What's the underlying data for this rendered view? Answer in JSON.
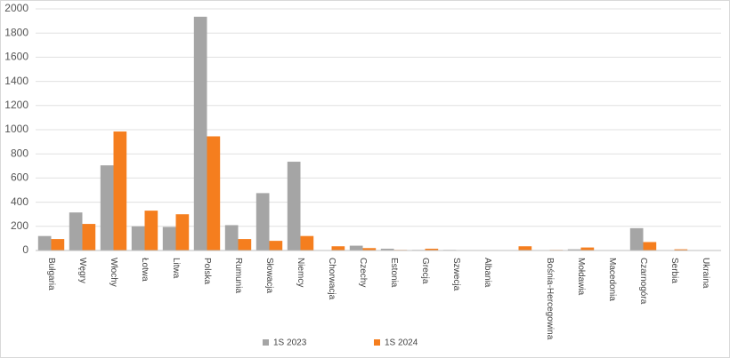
{
  "chart_data": {
    "type": "bar",
    "categories": [
      "Bułgaria",
      "Węgry",
      "Włochy",
      "Łotwa",
      "Litwa",
      "Polska",
      "Rumunia",
      "Słowacja",
      "Niemcy",
      "Chorwacja",
      "Czechy",
      "Estonia",
      "Grecja",
      "Szwecja",
      "Albania",
      null,
      "Bośnia-Hercegowina",
      "Mołdawia",
      "Macedonia",
      "Czarnogóra",
      "Serbia",
      "Ukraina"
    ],
    "series": [
      {
        "name": "1S 2023",
        "color": "#a5a5a5",
        "values": [
          120,
          315,
          705,
          200,
          195,
          1935,
          210,
          475,
          735,
          0,
          40,
          15,
          5,
          5,
          0,
          0,
          2,
          10,
          0,
          185,
          0,
          0
        ]
      },
      {
        "name": "1S 2024",
        "color": "#f57e1e",
        "values": [
          95,
          220,
          985,
          330,
          300,
          945,
          95,
          80,
          120,
          35,
          20,
          5,
          15,
          0,
          0,
          35,
          5,
          25,
          0,
          70,
          10,
          0
        ]
      }
    ],
    "ylim": [
      0,
      2000
    ],
    "yticks": [
      0,
      200,
      400,
      600,
      800,
      1000,
      1200,
      1400,
      1600,
      1800,
      2000
    ],
    "grid": true,
    "legend": "bottom"
  }
}
